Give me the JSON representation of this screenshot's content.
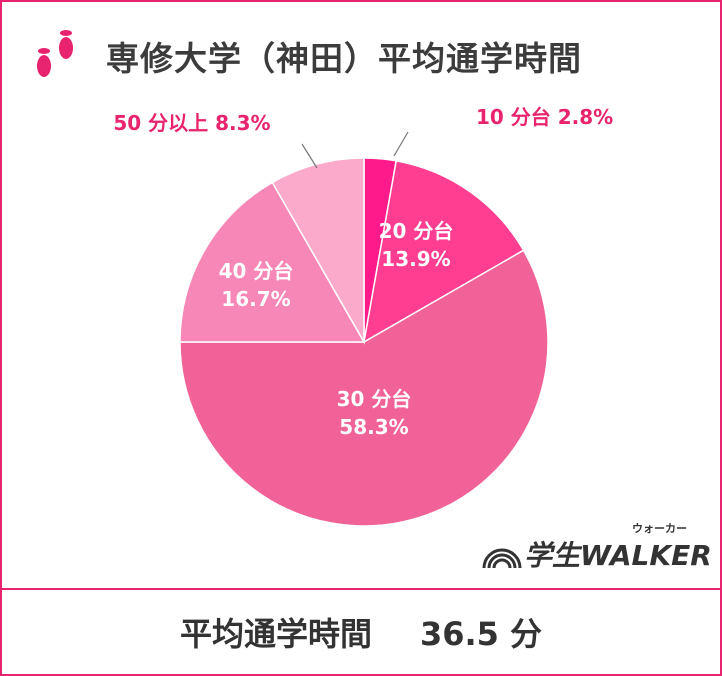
{
  "title": "専修大学（神田）平均通学時間",
  "chart_data": {
    "type": "pie",
    "slices": [
      {
        "label": "10 分台",
        "value": 2.8,
        "value_text": "2.8%",
        "color": "#ff1a8c"
      },
      {
        "label": "20 分台",
        "value": 13.9,
        "value_text": "13.9%",
        "color": "#ff3d91"
      },
      {
        "label": "30 分台",
        "value": 58.3,
        "value_text": "58.3%",
        "color": "#f06298"
      },
      {
        "label": "40 分台",
        "value": 16.7,
        "value_text": "16.7%",
        "color": "#f787b6"
      },
      {
        "label": "50 分以上",
        "value": 8.3,
        "value_text": "8.3%",
        "color": "#fcaacb"
      }
    ]
  },
  "footer": {
    "label": "平均通学時間",
    "value": "36.5 分"
  },
  "logo": {
    "text": "学生WALKER",
    "kana": "ウォーカー"
  },
  "colors": {
    "accent": "#e8246f",
    "text_dark": "#3c3c3c",
    "label_pink": "#e8246f"
  }
}
